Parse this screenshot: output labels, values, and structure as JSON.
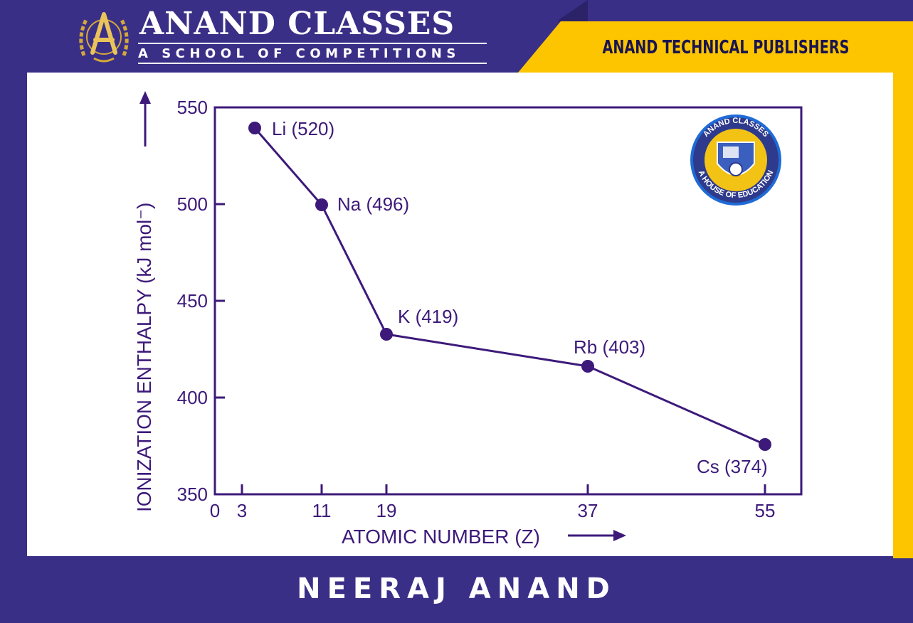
{
  "header": {
    "title": "ANAND CLASSES",
    "subtitle": "A SCHOOL OF  COMPETITIONS",
    "publisher": "ANAND TECHNICAL PUBLISHERS",
    "logo_icon": "compass-laurel-logo-icon"
  },
  "watermark": {
    "top_text": "ANAND CLASSES",
    "bottom_text": "A HOUSE OF EDUCATION",
    "icon": "anand-classes-seal-icon"
  },
  "footer": {
    "author": "NEERAJ ANAND"
  },
  "colors": {
    "brand_navy": "#3a2f87",
    "brand_yellow": "#fcc500",
    "plot_purple": "#3d1a7a"
  },
  "chart_data": {
    "type": "line",
    "xlabel": "ATOMIC NUMBER (Z)",
    "ylabel": "IONIZATION ENTHALPY   (kJ mol⁻)",
    "x_ticks": [
      "0",
      "3",
      "11",
      "19",
      "37",
      "55"
    ],
    "y_ticks": [
      "350",
      "400",
      "450",
      "500",
      "550"
    ],
    "ylim": [
      350,
      550
    ],
    "grid": false,
    "series": [
      {
        "points": [
          {
            "element": "Li",
            "z": 3,
            "value": 520,
            "label": "Li (520)"
          },
          {
            "element": "Na",
            "z": 11,
            "value": 496,
            "label": "Na (496)"
          },
          {
            "element": "K",
            "z": 19,
            "value": 419,
            "label": "K (419)"
          },
          {
            "element": "Rb",
            "z": 37,
            "value": 403,
            "label": "Rb (403)"
          },
          {
            "element": "Cs",
            "z": 55,
            "value": 374,
            "label": "Cs (374)"
          }
        ]
      }
    ]
  }
}
